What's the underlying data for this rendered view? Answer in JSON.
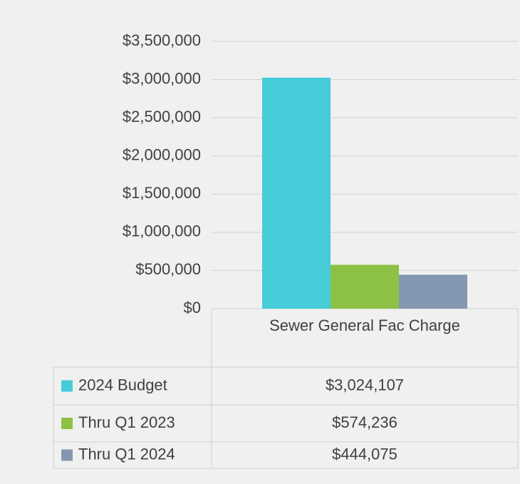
{
  "chart_data": {
    "type": "bar",
    "categories": [
      "Sewer General Fac Charge"
    ],
    "series": [
      {
        "name": "2024 Budget",
        "color": "#45ccd8",
        "values": [
          3024107
        ],
        "value_labels": [
          "$3,024,107"
        ]
      },
      {
        "name": "Thru Q1 2023",
        "color": "#8cc145",
        "values": [
          574236
        ],
        "value_labels": [
          "$574,236"
        ]
      },
      {
        "name": "Thru Q1 2024",
        "color": "#8497b0",
        "values": [
          444075
        ],
        "value_labels": [
          "$444,075"
        ]
      }
    ],
    "ylim": [
      0,
      3500000
    ],
    "yticks": [
      {
        "value": 0,
        "label": "$0"
      },
      {
        "value": 500000,
        "label": "$500,000"
      },
      {
        "value": 1000000,
        "label": "$1,000,000"
      },
      {
        "value": 1500000,
        "label": "$1,500,000"
      },
      {
        "value": 2000000,
        "label": "$2,000,000"
      },
      {
        "value": 2500000,
        "label": "$2,500,000"
      },
      {
        "value": 3000000,
        "label": "$3,000,000"
      },
      {
        "value": 3500000,
        "label": "$3,500,000"
      }
    ],
    "grid": true,
    "data_table": true
  }
}
